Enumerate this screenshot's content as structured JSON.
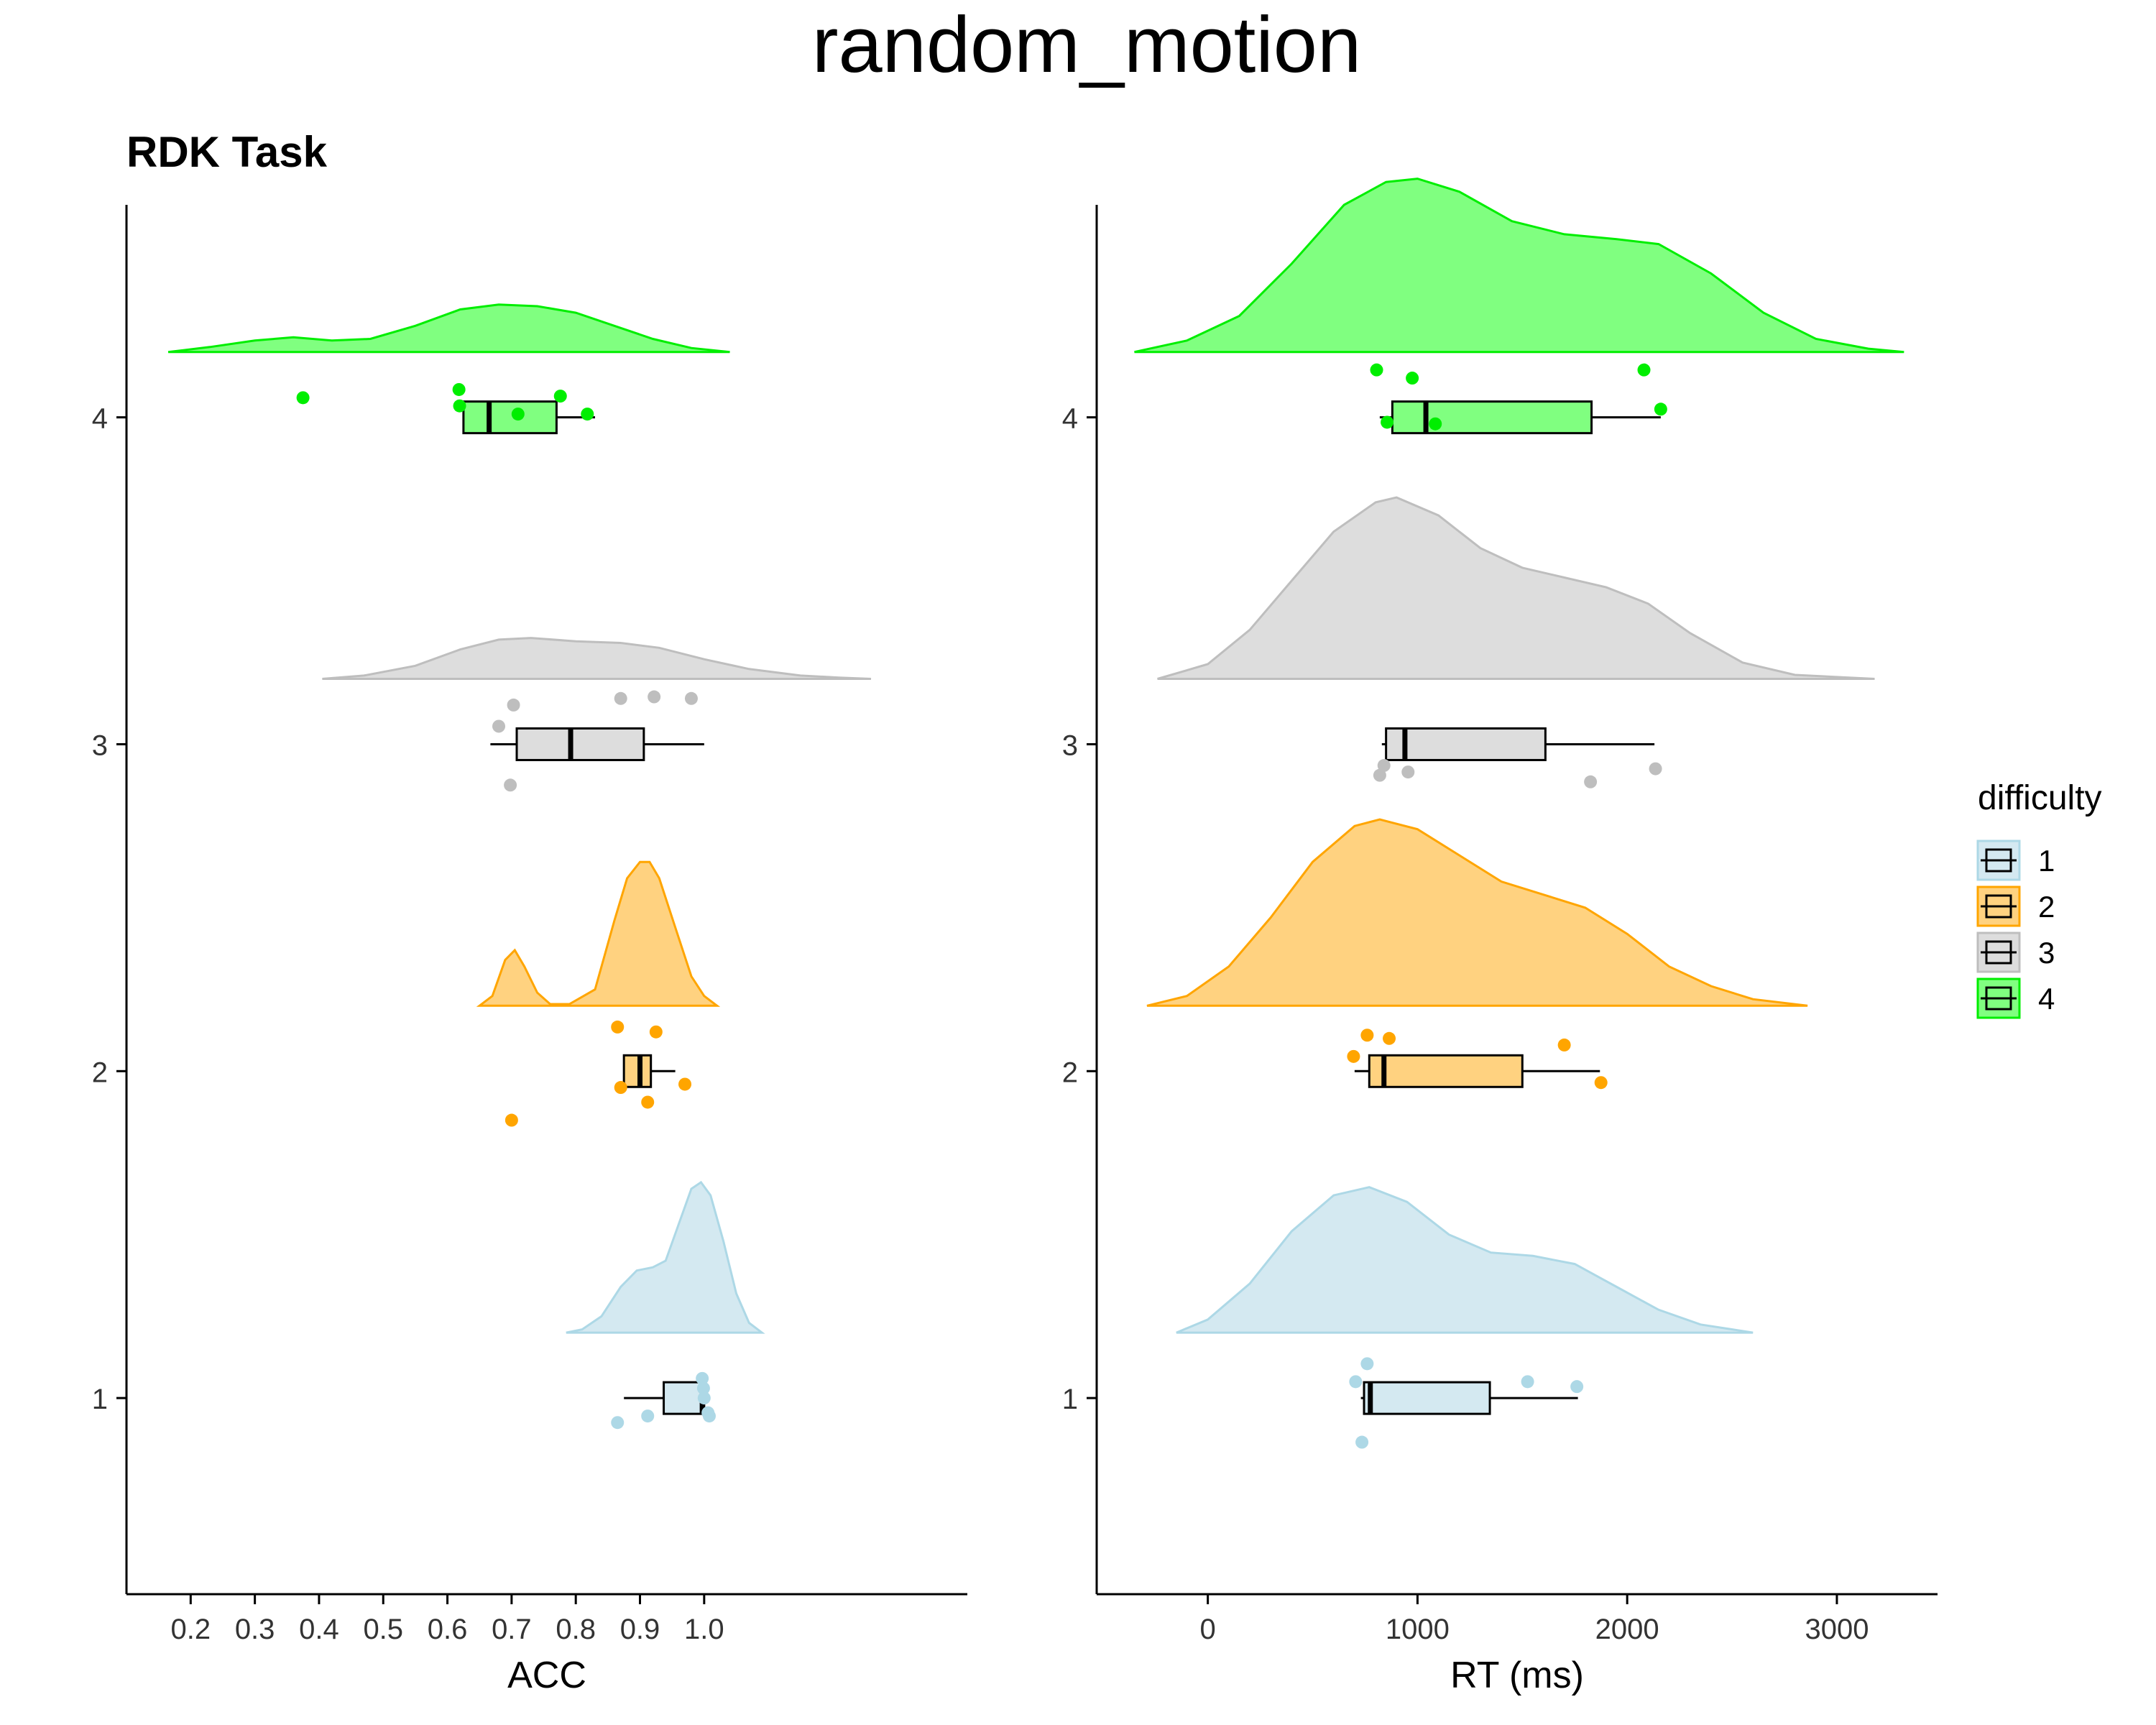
{
  "figure": {
    "title": "random_motion",
    "subtitle": "RDK Task"
  },
  "legend": {
    "title": "difficulty",
    "position": "right",
    "items": [
      {
        "label": "1",
        "fill": "#d4e9f1",
        "stroke": "#add8e6"
      },
      {
        "label": "2",
        "fill": "#ffd280",
        "stroke": "#ffa500"
      },
      {
        "label": "3",
        "fill": "#dddddd",
        "stroke": "#bebebe"
      },
      {
        "label": "4",
        "fill": "#80ff80",
        "stroke": "#00ee00"
      }
    ]
  },
  "colors": {
    "1": {
      "fill": "#d4e9f1",
      "line": "#add8e6",
      "point": "#add8e6"
    },
    "2": {
      "fill": "#ffd280",
      "line": "#ffa500",
      "point": "#ffa500"
    },
    "3": {
      "fill": "#dddddd",
      "line": "#bebebe",
      "point": "#bebebe"
    },
    "4": {
      "fill": "#80ff80",
      "line": "#00ee00",
      "point": "#00ee00"
    }
  },
  "chart_data": [
    {
      "type": "raincloud",
      "panel": "left",
      "xlabel": "ACC",
      "ylabel": "",
      "xlim": [
        0.1,
        1.41
      ],
      "ylim": [
        0.4,
        4.65
      ],
      "xticks": [
        0.2,
        0.3,
        0.4,
        0.5,
        0.6,
        0.7,
        0.8,
        0.9,
        1.0
      ],
      "xtick_labels": [
        "0.2",
        "0.3",
        "0.4",
        "0.5",
        "0.6",
        "0.7",
        "0.8",
        "0.9",
        "1.0"
      ],
      "yticks": [
        1,
        2,
        3,
        4
      ],
      "ytick_labels": [
        "1",
        "2",
        "3",
        "4"
      ],
      "grid": false,
      "groups": [
        {
          "difficulty": "1",
          "box": {
            "whisker_low": 0.875,
            "q1": 0.937,
            "median": 0.997,
            "q3": 1.0,
            "whisker_high": 1.0
          },
          "points": [
            [
              0.865,
              0.925
            ],
            [
              0.912,
              0.945
            ],
            [
              0.997,
              1.06
            ],
            [
              0.999,
              1.03
            ],
            [
              1.0,
              1.0
            ],
            [
              1.006,
              0.955
            ],
            [
              1.008,
              0.945
            ]
          ],
          "density": [
            [
              0.785,
              0
            ],
            [
              0.81,
              0.01
            ],
            [
              0.84,
              0.05
            ],
            [
              0.87,
              0.14
            ],
            [
              0.895,
              0.19
            ],
            [
              0.92,
              0.2
            ],
            [
              0.94,
              0.22
            ],
            [
              0.96,
              0.33
            ],
            [
              0.98,
              0.44
            ],
            [
              0.995,
              0.46
            ],
            [
              1.01,
              0.42
            ],
            [
              1.03,
              0.28
            ],
            [
              1.05,
              0.12
            ],
            [
              1.07,
              0.03
            ],
            [
              1.09,
              0
            ]
          ]
        },
        {
          "difficulty": "2",
          "box": {
            "whisker_low": 0.875,
            "q1": 0.875,
            "median": 0.9,
            "q3": 0.917,
            "whisker_high": 0.955
          },
          "points": [
            [
              0.7,
              1.85
            ],
            [
              0.865,
              2.135
            ],
            [
              0.87,
              1.95
            ],
            [
              0.912,
              1.905
            ],
            [
              0.925,
              2.12
            ],
            [
              0.97,
              1.96
            ]
          ],
          "density": [
            [
              0.65,
              0
            ],
            [
              0.67,
              0.03
            ],
            [
              0.69,
              0.14
            ],
            [
              0.705,
              0.17
            ],
            [
              0.72,
              0.12
            ],
            [
              0.74,
              0.04
            ],
            [
              0.76,
              0.005
            ],
            [
              0.79,
              0.005
            ],
            [
              0.83,
              0.05
            ],
            [
              0.86,
              0.26
            ],
            [
              0.88,
              0.39
            ],
            [
              0.9,
              0.44
            ],
            [
              0.915,
              0.44
            ],
            [
              0.93,
              0.39
            ],
            [
              0.955,
              0.24
            ],
            [
              0.98,
              0.09
            ],
            [
              1.0,
              0.03
            ],
            [
              1.02,
              0
            ]
          ]
        },
        {
          "difficulty": "3",
          "box": {
            "whisker_low": 0.667,
            "q1": 0.708,
            "median": 0.792,
            "q3": 0.906,
            "whisker_high": 1.0
          },
          "points": [
            [
              0.68,
              3.055
            ],
            [
              0.698,
              2.875
            ],
            [
              0.703,
              3.12
            ],
            [
              0.87,
              3.14
            ],
            [
              0.922,
              3.145
            ],
            [
              0.98,
              3.14
            ]
          ],
          "density": [
            [
              0.405,
              0
            ],
            [
              0.47,
              0.01
            ],
            [
              0.55,
              0.04
            ],
            [
              0.62,
              0.09
            ],
            [
              0.68,
              0.12
            ],
            [
              0.73,
              0.125
            ],
            [
              0.8,
              0.115
            ],
            [
              0.87,
              0.11
            ],
            [
              0.93,
              0.095
            ],
            [
              1.0,
              0.06
            ],
            [
              1.07,
              0.03
            ],
            [
              1.15,
              0.01
            ],
            [
              1.21,
              0.004
            ],
            [
              1.26,
              0
            ]
          ]
        },
        {
          "difficulty": "4",
          "box": {
            "whisker_low": 0.625,
            "q1": 0.625,
            "median": 0.665,
            "q3": 0.77,
            "whisker_high": 0.83
          },
          "points": [
            [
              0.375,
              4.06
            ],
            [
              0.618,
              4.085
            ],
            [
              0.619,
              4.035
            ],
            [
              0.71,
              4.01
            ],
            [
              0.776,
              4.065
            ],
            [
              0.818,
              4.01
            ]
          ],
          "density": [
            [
              0.165,
              0
            ],
            [
              0.23,
              0.015
            ],
            [
              0.3,
              0.035
            ],
            [
              0.36,
              0.045
            ],
            [
              0.42,
              0.035
            ],
            [
              0.48,
              0.04
            ],
            [
              0.55,
              0.08
            ],
            [
              0.62,
              0.13
            ],
            [
              0.68,
              0.145
            ],
            [
              0.74,
              0.14
            ],
            [
              0.8,
              0.12
            ],
            [
              0.86,
              0.08
            ],
            [
              0.92,
              0.04
            ],
            [
              0.98,
              0.012
            ],
            [
              1.04,
              0
            ]
          ]
        }
      ]
    },
    {
      "type": "raincloud",
      "panel": "right",
      "xlabel": "RT (ms)",
      "ylabel": "",
      "xlim": [
        -530,
        3480
      ],
      "ylim": [
        0.4,
        4.65
      ],
      "xticks": [
        0,
        1000,
        2000,
        3000
      ],
      "xtick_labels": [
        "0",
        "1000",
        "2000",
        "3000"
      ],
      "yticks": [
        1,
        2,
        3,
        4
      ],
      "ytick_labels": [
        "1",
        "2",
        "3",
        "4"
      ],
      "grid": false,
      "groups": [
        {
          "difficulty": "1",
          "box": {
            "whisker_low": 730,
            "q1": 745,
            "median": 775,
            "q3": 1345,
            "whisker_high": 1765
          },
          "points": [
            [
              735,
              0.865
            ],
            [
              705,
              1.05
            ],
            [
              760,
              1.105
            ],
            [
              1525,
              1.05
            ],
            [
              1760,
              1.035
            ]
          ],
          "density": [
            [
              -150,
              0
            ],
            [
              0,
              0.04
            ],
            [
              200,
              0.15
            ],
            [
              400,
              0.31
            ],
            [
              600,
              0.42
            ],
            [
              770,
              0.445
            ],
            [
              950,
              0.4
            ],
            [
              1150,
              0.3
            ],
            [
              1350,
              0.245
            ],
            [
              1550,
              0.235
            ],
            [
              1750,
              0.21
            ],
            [
              1950,
              0.14
            ],
            [
              2150,
              0.07
            ],
            [
              2350,
              0.025
            ],
            [
              2600,
              0
            ]
          ]
        },
        {
          "difficulty": "2",
          "box": {
            "whisker_low": 700,
            "q1": 770,
            "median": 840,
            "q3": 1500,
            "whisker_high": 1870
          },
          "points": [
            [
              695,
              2.045
            ],
            [
              760,
              2.11
            ],
            [
              865,
              2.1
            ],
            [
              1700,
              2.08
            ],
            [
              1875,
              1.965
            ]
          ],
          "density": [
            [
              -290,
              0
            ],
            [
              -100,
              0.03
            ],
            [
              100,
              0.12
            ],
            [
              300,
              0.27
            ],
            [
              500,
              0.44
            ],
            [
              700,
              0.55
            ],
            [
              820,
              0.57
            ],
            [
              1000,
              0.54
            ],
            [
              1200,
              0.46
            ],
            [
              1400,
              0.38
            ],
            [
              1600,
              0.34
            ],
            [
              1800,
              0.3
            ],
            [
              2000,
              0.22
            ],
            [
              2200,
              0.12
            ],
            [
              2400,
              0.06
            ],
            [
              2600,
              0.02
            ],
            [
              2860,
              0
            ]
          ]
        },
        {
          "difficulty": "3",
          "box": {
            "whisker_low": 830,
            "q1": 850,
            "median": 940,
            "q3": 1610,
            "whisker_high": 2130
          },
          "points": [
            [
              820,
              2.905
            ],
            [
              840,
              2.935
            ],
            [
              955,
              2.915
            ],
            [
              1825,
              2.885
            ],
            [
              2135,
              2.925
            ]
          ],
          "density": [
            [
              -240,
              0
            ],
            [
              0,
              0.045
            ],
            [
              200,
              0.15
            ],
            [
              400,
              0.3
            ],
            [
              600,
              0.45
            ],
            [
              800,
              0.54
            ],
            [
              900,
              0.555
            ],
            [
              1100,
              0.5
            ],
            [
              1300,
              0.4
            ],
            [
              1500,
              0.34
            ],
            [
              1700,
              0.31
            ],
            [
              1900,
              0.28
            ],
            [
              2100,
              0.23
            ],
            [
              2300,
              0.14
            ],
            [
              2550,
              0.05
            ],
            [
              2800,
              0.012
            ],
            [
              3180,
              0
            ]
          ]
        },
        {
          "difficulty": "4",
          "box": {
            "whisker_low": 820,
            "q1": 880,
            "median": 1040,
            "q3": 1830,
            "whisker_high": 2160
          },
          "points": [
            [
              805,
              4.145
            ],
            [
              855,
              3.985
            ],
            [
              975,
              4.12
            ],
            [
              1085,
              3.98
            ],
            [
              2080,
              4.145
            ],
            [
              2160,
              4.025
            ]
          ],
          "density": [
            [
              -350,
              0
            ],
            [
              -100,
              0.035
            ],
            [
              150,
              0.11
            ],
            [
              400,
              0.27
            ],
            [
              650,
              0.45
            ],
            [
              850,
              0.52
            ],
            [
              1000,
              0.53
            ],
            [
              1200,
              0.49
            ],
            [
              1450,
              0.4
            ],
            [
              1700,
              0.36
            ],
            [
              1950,
              0.345
            ],
            [
              2150,
              0.33
            ],
            [
              2400,
              0.24
            ],
            [
              2650,
              0.12
            ],
            [
              2900,
              0.04
            ],
            [
              3150,
              0.01
            ],
            [
              3320,
              0
            ]
          ]
        }
      ]
    }
  ]
}
